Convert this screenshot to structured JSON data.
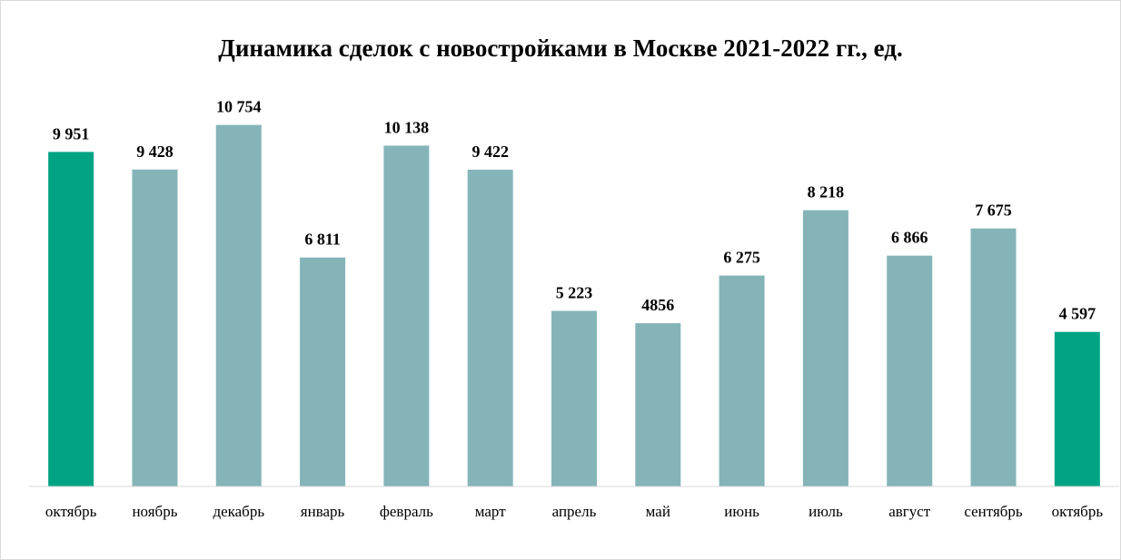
{
  "chart_data": {
    "type": "bar",
    "title": "Динамика сделок с новостройками в Москве 2021-2022 гг., ед.",
    "categories": [
      "октябрь",
      "ноябрь",
      "декабрь",
      "январь",
      "февраль",
      "март",
      "апрель",
      "май",
      "июнь",
      "июль",
      "август",
      "сентябрь",
      "октябрь"
    ],
    "values": [
      9951,
      9428,
      10754,
      6811,
      10138,
      9422,
      5223,
      4856,
      6275,
      8218,
      6866,
      7675,
      4597
    ],
    "value_labels": [
      "9 951",
      "9 428",
      "10 754",
      "6 811",
      "10 138",
      "9 422",
      "5 223",
      "4856",
      "6 275",
      "8 218",
      "6 866",
      "7 675",
      "4 597"
    ],
    "bar_colors": [
      "#00A485",
      "#85B4B8",
      "#85B4B8",
      "#85B4B8",
      "#85B4B8",
      "#85B4B8",
      "#85B4B8",
      "#85B4B8",
      "#85B4B8",
      "#85B4B8",
      "#85B4B8",
      "#85B4B8",
      "#00A485"
    ],
    "ylim": [
      0,
      11500
    ],
    "legend": "none",
    "grid": false,
    "axis_color": "#d9d9d9"
  }
}
